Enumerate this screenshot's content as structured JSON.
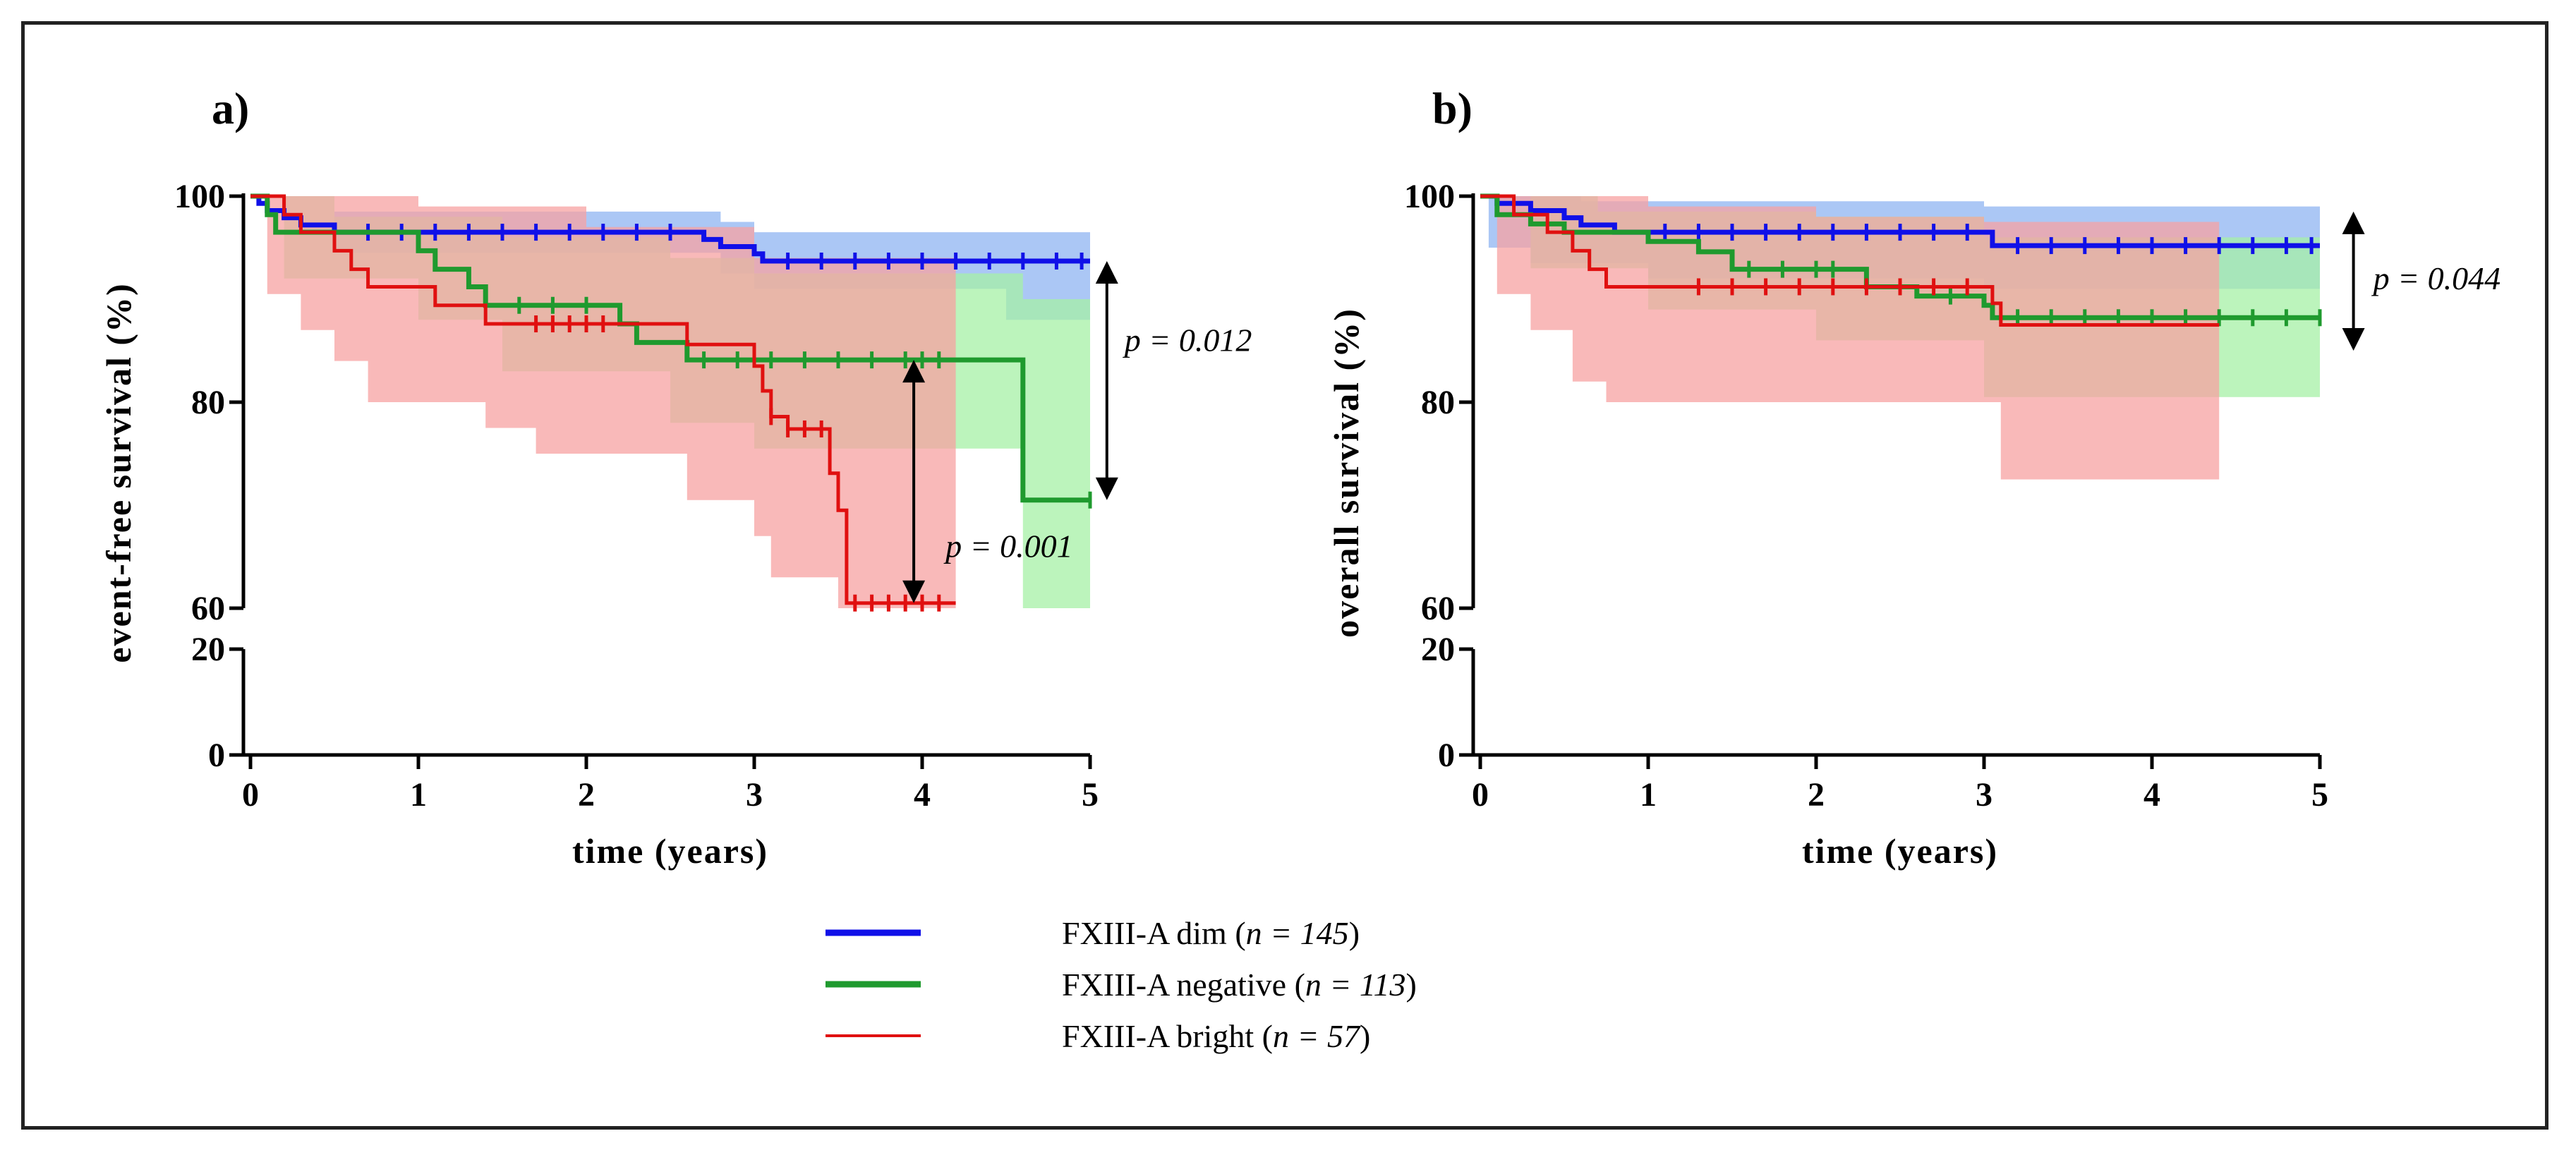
{
  "chart_data": [
    {
      "type": "line",
      "subtype": "kaplan-meier",
      "panel_label": "a)",
      "xlabel": "time (years)",
      "ylabel": "event-free survival (%)",
      "xlim": [
        0,
        5
      ],
      "ylim": [
        0,
        100
      ],
      "y_axis_break": [
        20,
        60
      ],
      "x_ticks": [
        "0",
        "1",
        "2",
        "3",
        "4",
        "5"
      ],
      "y_ticks": [
        "100",
        "80",
        "60",
        "20",
        "0"
      ],
      "series": [
        {
          "name": "FXIII-A dim",
          "color": "#1010e8",
          "band_color": "#8fb4f2",
          "steps": [
            [
              0,
              100
            ],
            [
              0.05,
              99.3
            ],
            [
              0.1,
              98.6
            ],
            [
              0.2,
              97.9
            ],
            [
              0.3,
              97.2
            ],
            [
              0.5,
              96.5
            ],
            [
              2.7,
              95.8
            ],
            [
              2.8,
              95.1
            ],
            [
              3.0,
              94.4
            ],
            [
              3.05,
              93.7
            ],
            [
              5.0,
              93.7
            ]
          ],
          "band_upper": [
            [
              0,
              100
            ],
            [
              0.5,
              98.5
            ],
            [
              2.8,
              97.5
            ],
            [
              3.0,
              96.5
            ],
            [
              5.0,
              96.5
            ]
          ],
          "band_lower": [
            [
              0,
              100
            ],
            [
              0.5,
              94.5
            ],
            [
              2.8,
              92.5
            ],
            [
              3.0,
              91.0
            ],
            [
              4.5,
              88.0
            ],
            [
              5.0,
              88.0
            ]
          ],
          "censor_ticks": [
            0.7,
            0.9,
            1.1,
            1.3,
            1.5,
            1.7,
            1.9,
            2.1,
            2.3,
            2.5,
            3.2,
            3.4,
            3.6,
            3.8,
            4.0,
            4.2,
            4.4,
            4.6,
            4.8,
            4.95
          ]
        },
        {
          "name": "FXIII-A negative",
          "color": "#1f9a2e",
          "band_color": "#a6f0a6",
          "steps": [
            [
              0,
              100
            ],
            [
              0.1,
              98.2
            ],
            [
              0.15,
              96.5
            ],
            [
              1.0,
              94.7
            ],
            [
              1.1,
              92.9
            ],
            [
              1.3,
              91.2
            ],
            [
              1.4,
              89.4
            ],
            [
              2.2,
              87.6
            ],
            [
              2.3,
              85.8
            ],
            [
              2.6,
              84.1
            ],
            [
              3.0,
              84.1
            ],
            [
              4.6,
              70.5
            ],
            [
              5.0,
              70.5
            ]
          ],
          "band_upper": [
            [
              0,
              100
            ],
            [
              0.5,
              98
            ],
            [
              1.5,
              96
            ],
            [
              2.5,
              94
            ],
            [
              3.0,
              92.5
            ],
            [
              4.6,
              90
            ],
            [
              5.0,
              90
            ]
          ],
          "band_lower": [
            [
              0,
              100
            ],
            [
              0.2,
              92
            ],
            [
              1.0,
              88
            ],
            [
              1.5,
              83
            ],
            [
              2.5,
              78
            ],
            [
              3.0,
              75.5
            ],
            [
              4.6,
              60
            ],
            [
              5.0,
              60
            ]
          ],
          "censor_ticks": [
            1.6,
            1.8,
            2.0,
            2.7,
            2.9,
            3.1,
            3.3,
            3.5,
            3.7,
            3.9,
            4.0,
            4.1,
            5.0
          ]
        },
        {
          "name": "FXIII-A bright",
          "color": "#e01010",
          "band_color": "#f7a2a2",
          "steps": [
            [
              0,
              100
            ],
            [
              0.2,
              98.2
            ],
            [
              0.3,
              96.5
            ],
            [
              0.5,
              94.7
            ],
            [
              0.6,
              92.9
            ],
            [
              0.7,
              91.2
            ],
            [
              1.1,
              89.4
            ],
            [
              1.4,
              87.6
            ],
            [
              1.7,
              87.6
            ],
            [
              2.6,
              85.6
            ],
            [
              3.0,
              83.5
            ],
            [
              3.05,
              81.1
            ],
            [
              3.1,
              78.6
            ],
            [
              3.2,
              77.4
            ],
            [
              3.45,
              73.1
            ],
            [
              3.5,
              69.5
            ],
            [
              3.55,
              60.5
            ],
            [
              4.2,
              60.5
            ]
          ],
          "band_upper": [
            [
              0,
              100
            ],
            [
              1.0,
              99
            ],
            [
              2.0,
              97
            ],
            [
              3.0,
              94
            ],
            [
              4.2,
              90
            ]
          ],
          "band_lower": [
            [
              0,
              100
            ],
            [
              0.1,
              90.5
            ],
            [
              0.3,
              87
            ],
            [
              0.5,
              84
            ],
            [
              0.7,
              80
            ],
            [
              1.4,
              77.5
            ],
            [
              1.7,
              75
            ],
            [
              2.6,
              70.5
            ],
            [
              3.0,
              67
            ],
            [
              3.1,
              63
            ],
            [
              3.5,
              60
            ],
            [
              4.2,
              60
            ]
          ],
          "censor_ticks": [
            1.7,
            1.8,
            1.9,
            2.0,
            2.1,
            3.1,
            3.2,
            3.3,
            3.4,
            3.6,
            3.7,
            3.8,
            3.9,
            4.0,
            4.1
          ]
        }
      ],
      "annotations": [
        {
          "text": "p = 0.012",
          "between": [
            "FXIII-A dim",
            "FXIII-A negative"
          ],
          "x": 5.1,
          "y_from": 93.7,
          "y_to": 70.5
        },
        {
          "text": "p = 0.001",
          "between": [
            "FXIII-A negative",
            "FXIII-A bright"
          ],
          "x": 3.95,
          "y_from": 84.1,
          "y_to": 60.5
        }
      ]
    },
    {
      "type": "line",
      "subtype": "kaplan-meier",
      "panel_label": "b)",
      "xlabel": "time (years)",
      "ylabel": "overall survival (%)",
      "xlim": [
        0,
        5
      ],
      "ylim": [
        0,
        100
      ],
      "y_axis_break": [
        20,
        60
      ],
      "x_ticks": [
        "0",
        "1",
        "2",
        "3",
        "4",
        "5"
      ],
      "y_ticks": [
        "100",
        "80",
        "60",
        "20",
        "0"
      ],
      "series": [
        {
          "name": "FXIII-A dim",
          "color": "#1010e8",
          "band_color": "#8fb4f2",
          "steps": [
            [
              0,
              100
            ],
            [
              0.1,
              99.3
            ],
            [
              0.3,
              98.6
            ],
            [
              0.5,
              97.9
            ],
            [
              0.6,
              97.2
            ],
            [
              0.8,
              96.5
            ],
            [
              3.0,
              96.5
            ],
            [
              3.05,
              95.2
            ],
            [
              5.0,
              95.2
            ]
          ],
          "band_upper": [
            [
              0,
              100
            ],
            [
              0.6,
              99.5
            ],
            [
              3.0,
              99
            ],
            [
              5.0,
              98
            ]
          ],
          "band_lower": [
            [
              0,
              100
            ],
            [
              0.05,
              95
            ],
            [
              0.3,
              93.5
            ],
            [
              1.0,
              92
            ],
            [
              3.0,
              91
            ],
            [
              5.0,
              90
            ]
          ],
          "censor_ticks": [
            1.1,
            1.3,
            1.5,
            1.7,
            1.9,
            2.1,
            2.3,
            2.5,
            2.7,
            2.9,
            3.2,
            3.4,
            3.6,
            3.8,
            4.0,
            4.2,
            4.4,
            4.6,
            4.8,
            4.95
          ]
        },
        {
          "name": "FXIII-A negative",
          "color": "#1f9a2e",
          "band_color": "#a6f0a6",
          "steps": [
            [
              0,
              100
            ],
            [
              0.1,
              98.2
            ],
            [
              0.3,
              97.3
            ],
            [
              0.5,
              96.5
            ],
            [
              1.0,
              95.6
            ],
            [
              1.3,
              94.6
            ],
            [
              1.5,
              92.9
            ],
            [
              2.2,
              92.9
            ],
            [
              2.3,
              91.2
            ],
            [
              2.6,
              90.3
            ],
            [
              3.0,
              89.4
            ],
            [
              3.05,
              88.2
            ],
            [
              5.0,
              88.2
            ]
          ],
          "band_upper": [
            [
              0,
              100
            ],
            [
              0.7,
              98.5
            ],
            [
              2.0,
              98
            ],
            [
              3.0,
              96
            ],
            [
              5.0,
              95.5
            ]
          ],
          "band_lower": [
            [
              0,
              100
            ],
            [
              0.3,
              93
            ],
            [
              1.0,
              89
            ],
            [
              2.0,
              86
            ],
            [
              3.0,
              80.5
            ],
            [
              5.0,
              80
            ]
          ],
          "censor_ticks": [
            1.6,
            1.8,
            2.0,
            2.1,
            2.5,
            2.8,
            3.2,
            3.4,
            3.6,
            3.8,
            4.0,
            4.2,
            4.4,
            4.6,
            4.8,
            5.0
          ]
        },
        {
          "name": "FXIII-A bright",
          "color": "#e01010",
          "band_color": "#f7a2a2",
          "steps": [
            [
              0,
              100
            ],
            [
              0.2,
              98.2
            ],
            [
              0.4,
              96.5
            ],
            [
              0.55,
              94.7
            ],
            [
              0.65,
              92.9
            ],
            [
              0.75,
              91.2
            ],
            [
              3.0,
              91.2
            ],
            [
              3.05,
              89.6
            ],
            [
              3.1,
              87.5
            ],
            [
              4.4,
              87.5
            ]
          ],
          "band_upper": [
            [
              0,
              100
            ],
            [
              1.0,
              99
            ],
            [
              2.0,
              98
            ],
            [
              3.0,
              97.5
            ],
            [
              4.4,
              97
            ]
          ],
          "band_lower": [
            [
              0,
              100
            ],
            [
              0.1,
              90.5
            ],
            [
              0.3,
              87
            ],
            [
              0.55,
              82
            ],
            [
              0.75,
              80
            ],
            [
              3.05,
              80
            ],
            [
              3.1,
              72.5
            ],
            [
              4.4,
              72.5
            ]
          ],
          "censor_ticks": [
            1.3,
            1.5,
            1.7,
            1.9,
            2.1,
            2.3,
            2.5,
            2.7,
            2.9
          ]
        }
      ],
      "annotations": [
        {
          "text": "p = 0.044",
          "between": [
            "FXIII-A dim",
            "FXIII-A negative"
          ],
          "x": 5.2,
          "y_from": 98.5,
          "y_to": 85
        }
      ]
    }
  ],
  "legend": [
    {
      "group": "FXIII-A dim",
      "prefix": "FXIII-A dim (",
      "n_label": "n = 145",
      "suffix": ")",
      "color": "#1010e8"
    },
    {
      "group": "FXIII-A negative",
      "prefix": "FXIII-A negative (",
      "n_label": "n = 113",
      "suffix": ")",
      "color": "#1f9a2e"
    },
    {
      "group": "FXIII-A bright",
      "prefix": "FXIII-A bright (",
      "n_label": "n = 57",
      "suffix": ")",
      "color": "#e01010"
    }
  ]
}
